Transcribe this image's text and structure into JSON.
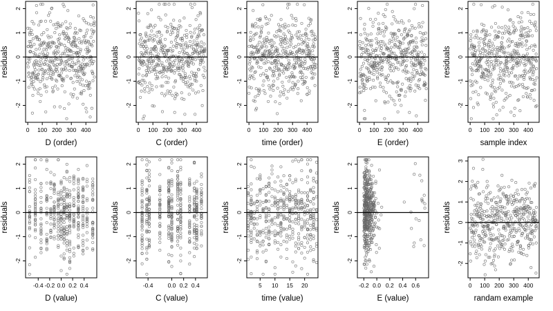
{
  "figure": {
    "marker": "open-circle",
    "point_color": "#666666",
    "reference_line_color": "#000000",
    "reference_line_y": 0,
    "grid": false
  },
  "chart_data": [
    {
      "type": "scatter",
      "xlabel": "D (order)",
      "ylabel": "residuals",
      "xlim": [
        -15,
        475
      ],
      "ylim": [
        -2.7,
        2.3
      ],
      "xticks": [
        0,
        100,
        200,
        300,
        400
      ],
      "yticks": [
        -2,
        -1,
        0,
        1,
        2
      ],
      "x_kind": "index",
      "n": 460,
      "sd": 0.92,
      "seed": 11,
      "points": []
    },
    {
      "type": "scatter",
      "xlabel": "C (order)",
      "ylabel": "residuals",
      "xlim": [
        -15,
        475
      ],
      "ylim": [
        -2.7,
        2.3
      ],
      "xticks": [
        0,
        100,
        200,
        300,
        400
      ],
      "yticks": [
        -2,
        -1,
        0,
        1,
        2
      ],
      "x_kind": "index",
      "n": 460,
      "sd": 0.92,
      "seed": 12,
      "points": []
    },
    {
      "type": "scatter",
      "xlabel": "time (order)",
      "ylabel": "residuals",
      "xlim": [
        -15,
        475
      ],
      "ylim": [
        -2.7,
        2.3
      ],
      "xticks": [
        0,
        100,
        200,
        300,
        400
      ],
      "yticks": [
        -2,
        -1,
        0,
        1,
        2
      ],
      "x_kind": "index",
      "n": 460,
      "sd": 0.92,
      "seed": 13,
      "points": []
    },
    {
      "type": "scatter",
      "xlabel": "E (order)",
      "ylabel": "residuals",
      "xlim": [
        -15,
        475
      ],
      "ylim": [
        -2.7,
        2.3
      ],
      "xticks": [
        0,
        100,
        200,
        300,
        400
      ],
      "yticks": [
        -2,
        -1,
        0,
        1,
        2
      ],
      "x_kind": "index",
      "n": 460,
      "sd": 0.92,
      "seed": 14,
      "points": []
    },
    {
      "type": "scatter",
      "xlabel": "sample index",
      "ylabel": "residuals",
      "xlim": [
        -15,
        475
      ],
      "ylim": [
        -2.7,
        2.3
      ],
      "xticks": [
        0,
        100,
        200,
        300,
        400
      ],
      "yticks": [
        -2,
        -1,
        0,
        1,
        2
      ],
      "x_kind": "index",
      "n": 460,
      "sd": 0.92,
      "seed": 15,
      "points": []
    },
    {
      "type": "scatter",
      "xlabel": "D (value)",
      "ylabel": "residuals",
      "xlim": [
        -0.62,
        0.62
      ],
      "ylim": [
        -2.7,
        2.3
      ],
      "xticks": [
        -0.4,
        -0.2,
        0.0,
        0.2,
        0.4
      ],
      "yticks": [
        -2,
        -1,
        0,
        1,
        2
      ],
      "xtick_labels": [
        "-0.4",
        "-0.2",
        "0.0",
        "0.2",
        "0.4"
      ],
      "x_kind": "discrete",
      "x_levels": [
        -0.55,
        -0.45,
        -0.35,
        -0.25,
        -0.18,
        -0.12,
        -0.05,
        0.0,
        0.05,
        0.1,
        0.15,
        0.22,
        0.3,
        0.38,
        0.45,
        0.55
      ],
      "n": 460,
      "sd": 0.92,
      "seed": 21,
      "points": []
    },
    {
      "type": "scatter",
      "xlabel": "C (value)",
      "ylabel": "residuals",
      "xlim": [
        -0.6,
        0.6
      ],
      "ylim": [
        -2.7,
        2.3
      ],
      "xticks": [
        -0.4,
        0.0,
        0.2,
        0.4
      ],
      "yticks": [
        -2,
        -1,
        0,
        1,
        2
      ],
      "xtick_labels": [
        "-0.4",
        "0.0",
        "0.2",
        "0.4"
      ],
      "x_kind": "discrete",
      "x_levels": [
        -0.5,
        -0.42,
        -0.38,
        -0.2,
        -0.05,
        0.0,
        0.1,
        0.15,
        0.3,
        0.38,
        0.42,
        0.5
      ],
      "n": 460,
      "sd": 0.92,
      "seed": 22,
      "points": []
    },
    {
      "type": "scatter",
      "xlabel": "time (value)",
      "ylabel": "residuals",
      "xlim": [
        0.5,
        24.5
      ],
      "ylim": [
        -2.7,
        2.3
      ],
      "xticks": [
        5,
        10,
        15,
        20
      ],
      "yticks": [
        -2,
        -1,
        0,
        1,
        2
      ],
      "xtick_labels": [
        "5",
        "10",
        "15",
        "20"
      ],
      "x_kind": "discrete",
      "x_levels": [
        1,
        2,
        3,
        4,
        5,
        6,
        7,
        8,
        9,
        10,
        11,
        12,
        13,
        14,
        15,
        16,
        17,
        18,
        19,
        20,
        21,
        22,
        23,
        24
      ],
      "n": 460,
      "sd": 0.92,
      "seed": 23,
      "points": []
    },
    {
      "type": "scatter",
      "xlabel": "E (value)",
      "ylabel": "residuals",
      "xlim": [
        -0.3,
        0.8
      ],
      "ylim": [
        -2.7,
        2.3
      ],
      "xticks": [
        -0.2,
        0.0,
        0.2,
        0.4,
        0.6
      ],
      "yticks": [
        -2,
        -1,
        0,
        1,
        2
      ],
      "xtick_labels": [
        "-0.2",
        "0.0",
        "0.2",
        "0.4",
        "0.6"
      ],
      "x_kind": "skewed",
      "n": 460,
      "sd": 0.92,
      "seed": 24,
      "points": []
    },
    {
      "type": "scatter",
      "xlabel": "randam example",
      "ylabel": "residuals",
      "xlim": [
        -15,
        475
      ],
      "ylim": [
        -2.7,
        3.2
      ],
      "xticks": [
        0,
        100,
        200,
        300,
        400
      ],
      "yticks": [
        -2,
        -1,
        0,
        1,
        2,
        3
      ],
      "x_kind": "index",
      "n": 460,
      "sd": 0.95,
      "seed": 25,
      "points": []
    }
  ]
}
